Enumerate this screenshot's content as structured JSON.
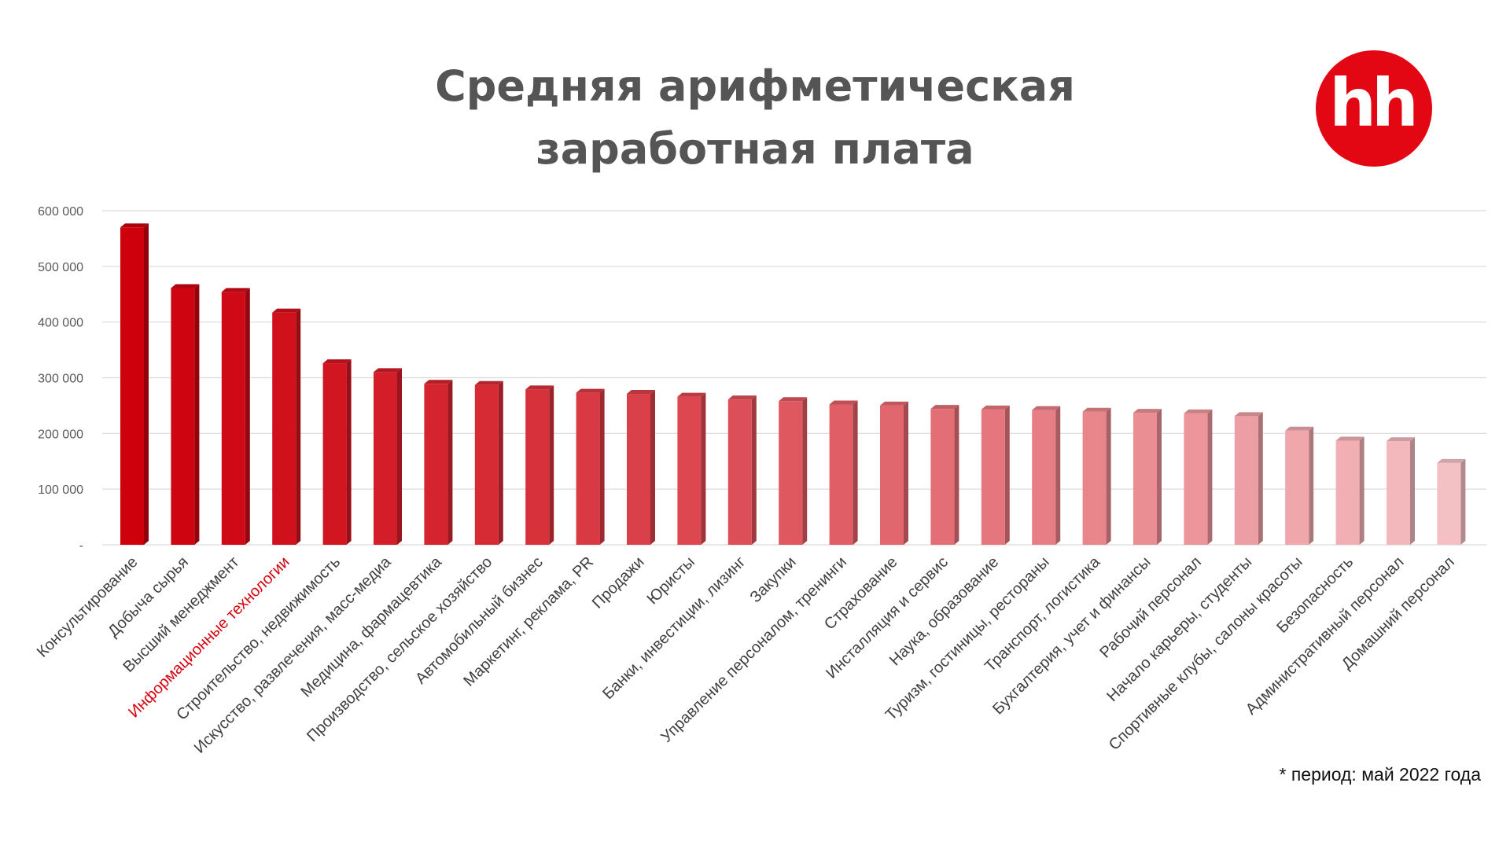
{
  "title_line1": "Средняя арифметическая",
  "title_line2": "заработная плата",
  "logo_text": "hh",
  "footnote": "* период: май 2022 года",
  "colors": {
    "brand_red": "#e30613",
    "highlight_label": "#d6000f",
    "grid": "#d9d9d9"
  },
  "chart_data": {
    "type": "bar",
    "title": "Средняя арифметическая заработная плата",
    "ylim": [
      0,
      600000
    ],
    "y_ticks": [
      {
        "value": 0,
        "label": "-"
      },
      {
        "value": 100000,
        "label": "100 000"
      },
      {
        "value": 200000,
        "label": "200 000"
      },
      {
        "value": 300000,
        "label": "300 000"
      },
      {
        "value": 400000,
        "label": "400 000"
      },
      {
        "value": 500000,
        "label": "500 000"
      },
      {
        "value": 600000,
        "label": "600 000"
      }
    ],
    "grid": true,
    "highlighted_category": "Информационные технологии",
    "categories": [
      "Консультирование",
      "Добыча сырья",
      "Высший менеджмент",
      "Информационные технологии",
      "Строительство, недвижимость",
      "Искусство, развлечения, масс-медиа",
      "Медицина, фармацевтика",
      "Производство, сельское хозяйство",
      "Автомобильный бизнес",
      "Маркетинг, реклама, PR",
      "Продажи",
      "Юристы",
      "Банки, инвестиции, лизинг",
      "Закупки",
      "Управление персоналом, тренинги",
      "Страхование",
      "Инсталляция и сервис",
      "Наука, образование",
      "Туризм, гостиницы, рестораны",
      "Транспорт, логистика",
      "Бухгалтерия, учет и финансы",
      "Рабочий персонал",
      "Начало карьеры, студенты",
      "Спортивные клубы, салоны красоты",
      "Безопасность",
      "Административный персонал",
      "Домашний персонал"
    ],
    "values": [
      570000,
      461000,
      454000,
      417000,
      326000,
      310000,
      289000,
      287000,
      279000,
      273000,
      271000,
      266000,
      261000,
      258000,
      252000,
      250000,
      244000,
      243000,
      242000,
      239000,
      237000,
      236000,
      231000,
      205000,
      187000,
      186000,
      147000
    ]
  }
}
